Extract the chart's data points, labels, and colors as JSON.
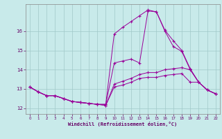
{
  "xlabel": "Windchill (Refroidissement éolien,°C)",
  "ylabel": "",
  "bg_color": "#c8eaea",
  "grid_color": "#a0c8c8",
  "line_color": "#990099",
  "xlim": [
    -0.5,
    22.5
  ],
  "ylim": [
    11.7,
    17.4
  ],
  "xticks": [
    0,
    1,
    2,
    3,
    4,
    5,
    6,
    7,
    8,
    9,
    10,
    11,
    12,
    13,
    14,
    15,
    16,
    17,
    18,
    19,
    20,
    21,
    22
  ],
  "yticks": [
    12,
    13,
    14,
    15,
    16
  ],
  "lines": [
    {
      "x": [
        0,
        1,
        2,
        3,
        4,
        5,
        6,
        7,
        8,
        9,
        10,
        11,
        12,
        13,
        14,
        15,
        16,
        17,
        18,
        19,
        20,
        21,
        22
      ],
      "y": [
        13.1,
        12.85,
        12.65,
        12.65,
        12.5,
        12.35,
        12.3,
        12.25,
        12.2,
        12.15,
        13.1,
        13.2,
        13.35,
        13.55,
        13.6,
        13.6,
        13.7,
        13.75,
        13.8,
        13.35,
        13.35,
        12.95,
        12.75
      ]
    },
    {
      "x": [
        0,
        1,
        2,
        3,
        4,
        5,
        6,
        7,
        8,
        9,
        10,
        11,
        12,
        13,
        14,
        15,
        16,
        17,
        18,
        19,
        20,
        21,
        22
      ],
      "y": [
        13.1,
        12.85,
        12.65,
        12.65,
        12.5,
        12.35,
        12.3,
        12.25,
        12.2,
        12.15,
        13.25,
        13.4,
        13.55,
        13.75,
        13.85,
        13.85,
        14.0,
        14.05,
        14.1,
        14.0,
        13.35,
        12.95,
        12.75
      ]
    },
    {
      "x": [
        0,
        1,
        2,
        3,
        4,
        5,
        6,
        7,
        8,
        9,
        10,
        11,
        12,
        13,
        14,
        15,
        16,
        17,
        18,
        19,
        20,
        21,
        22
      ],
      "y": [
        13.1,
        12.85,
        12.65,
        12.65,
        12.5,
        12.35,
        12.3,
        12.25,
        12.2,
        12.2,
        14.35,
        14.45,
        14.55,
        14.35,
        17.05,
        17.0,
        16.0,
        15.2,
        14.95,
        14.0,
        13.35,
        12.95,
        12.75
      ]
    },
    {
      "x": [
        0,
        1,
        2,
        3,
        4,
        5,
        6,
        7,
        8,
        9,
        10,
        11,
        12,
        13,
        14,
        15,
        16,
        17,
        18,
        19,
        20,
        21,
        22
      ],
      "y": [
        13.1,
        12.85,
        12.65,
        12.65,
        12.5,
        12.35,
        12.3,
        12.25,
        12.2,
        12.2,
        15.85,
        16.2,
        16.5,
        16.8,
        17.1,
        17.0,
        16.05,
        15.5,
        15.0,
        14.05,
        13.35,
        12.95,
        12.75
      ]
    }
  ]
}
